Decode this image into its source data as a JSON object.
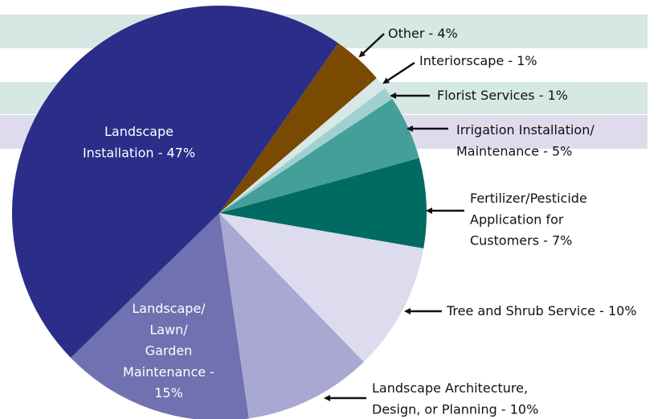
{
  "chart_data": {
    "type": "pie",
    "categories": [
      [
        "Other - 4%"
      ],
      [
        "Interiorscape - 1%"
      ],
      [
        "Florist Services - 1%"
      ],
      [
        "Irrigation Installation/",
        "Maintenance - 5%"
      ],
      [
        "Fertilizer/Pesticide",
        "Application for",
        "Customers - 7%"
      ],
      [
        "Tree and Shrub Service - 10%"
      ],
      [
        "Landscape Architecture,",
        "Design, or Planning - 10%"
      ],
      [
        "Landscape/",
        "Lawn/",
        "Garden",
        "Maintenance -",
        "15%"
      ],
      [
        "Landscape",
        "Installation - 47%"
      ]
    ],
    "values": [
      4,
      1,
      1,
      5,
      7,
      10,
      10,
      15,
      47
    ],
    "colors": [
      "#7a4a02",
      "#d6e9e6",
      "#9fd0cf",
      "#459f99",
      "#006b62",
      "#dcdcee",
      "#a9a8d3",
      "#7071b0",
      "#2a2e89"
    ]
  }
}
